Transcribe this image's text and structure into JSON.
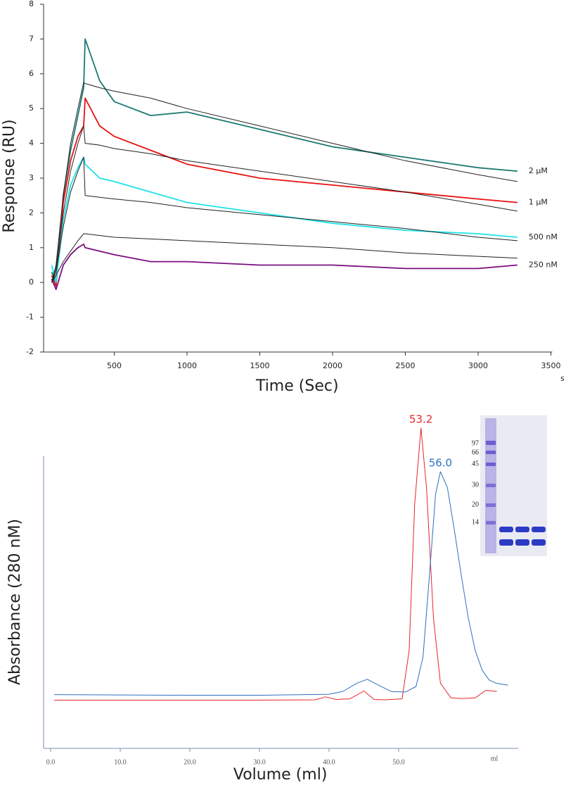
{
  "chart_data": [
    {
      "type": "line",
      "y_label": "Response (RU)",
      "x_label": "Time (Sec)",
      "x_unit": "s",
      "xlim": [
        0,
        3500
      ],
      "xticks": [
        500,
        1000,
        1500,
        2000,
        2500,
        3000,
        3500
      ],
      "ylim": [
        -2,
        8
      ],
      "yticks": [
        -2,
        -1,
        0,
        1,
        2,
        3,
        4,
        5,
        6,
        7,
        8
      ],
      "x": [
        70,
        100,
        150,
        200,
        250,
        290,
        300,
        400,
        500,
        750,
        1000,
        1500,
        2000,
        2500,
        3000,
        3270
      ],
      "series": [
        {
          "name": "2 µM",
          "color": "#1a7a74",
          "values": [
            0.3,
            0,
            2.5,
            3.8,
            4.8,
            5.6,
            7.0,
            5.8,
            5.2,
            4.8,
            4.9,
            4.4,
            3.9,
            3.6,
            3.3,
            3.2
          ]
        },
        {
          "name": "1 µM",
          "color": "#e8110f",
          "values": [
            0.2,
            -0.1,
            2.3,
            3.5,
            4.2,
            4.5,
            5.3,
            4.5,
            4.2,
            3.8,
            3.4,
            3.0,
            2.8,
            2.6,
            2.4,
            2.3
          ]
        },
        {
          "name": "500 nM",
          "color": "#1de3e8",
          "values": [
            0.5,
            0,
            1.8,
            2.8,
            3.3,
            3.6,
            3.4,
            3.0,
            2.9,
            2.6,
            2.3,
            2.0,
            1.7,
            1.5,
            1.4,
            1.3
          ]
        },
        {
          "name": "250 nM",
          "color": "#7a1080",
          "values": [
            0.1,
            -0.2,
            0.5,
            0.8,
            1.0,
            1.1,
            1.0,
            0.9,
            0.8,
            0.6,
            0.6,
            0.5,
            0.5,
            0.4,
            0.4,
            0.5
          ]
        },
        {
          "color": "#222222",
          "values": [
            0,
            0.5,
            2.5,
            4.0,
            5.0,
            5.75,
            5.72,
            5.6,
            5.5,
            5.3,
            5.0,
            4.5,
            4.0,
            3.5,
            3.1,
            2.9
          ]
        },
        {
          "color": "#222222",
          "values": [
            0,
            0.4,
            2.0,
            3.2,
            4.0,
            4.5,
            4.0,
            3.95,
            3.85,
            3.7,
            3.5,
            3.2,
            2.9,
            2.6,
            2.25,
            2.05
          ]
        },
        {
          "color": "#222222",
          "values": [
            0,
            0.3,
            1.6,
            2.6,
            3.2,
            3.6,
            2.5,
            2.45,
            2.4,
            2.3,
            2.15,
            1.95,
            1.75,
            1.55,
            1.3,
            1.2
          ]
        },
        {
          "color": "#222222",
          "values": [
            0,
            0.2,
            0.6,
            0.9,
            1.2,
            1.4,
            1.4,
            1.35,
            1.3,
            1.25,
            1.2,
            1.1,
            1.0,
            0.85,
            0.75,
            0.7
          ]
        }
      ]
    },
    {
      "type": "line",
      "y_label": "Absorbance (280 nM)",
      "x_label": "Volume (ml)",
      "x_unit": "ml",
      "xlim": [
        -1,
        67
      ],
      "xticks": [
        {
          "value": 0,
          "label": "0.0"
        },
        {
          "value": 10,
          "label": "10.0"
        },
        {
          "value": 20,
          "label": "20.0"
        },
        {
          "value": 30,
          "label": "30.0"
        },
        {
          "value": 40,
          "label": "40.0"
        },
        {
          "value": 50,
          "label": "50.0"
        }
      ],
      "ylim": [
        0,
        100
      ],
      "series": [
        {
          "color": "#e8252a",
          "peak_label": "53.2",
          "x": [
            0.5,
            10,
            20,
            30,
            38,
            39.5,
            41,
            43,
            45,
            46.5,
            48,
            50.5,
            51.5,
            52.3,
            53.2,
            54,
            55,
            56,
            57.5,
            59,
            61,
            62.5,
            63.5,
            64.1
          ],
          "values": [
            14.8,
            14.8,
            14.8,
            14.8,
            14.9,
            15.8,
            15.0,
            15.2,
            17.6,
            15.0,
            14.9,
            15.2,
            30,
            75,
            98.3,
            80,
            40,
            20,
            15.5,
            15.3,
            15.5,
            17.8,
            17.6,
            17.5
          ]
        },
        {
          "color": "#2f6fc0",
          "peak_label": "56.0",
          "x": [
            0.5,
            10,
            20,
            30,
            40,
            42,
            44,
            45.5,
            47,
            49,
            51,
            52.5,
            53.5,
            54.5,
            55.3,
            56,
            57,
            58,
            59,
            60,
            61,
            62,
            63,
            64,
            65.7
          ],
          "values": [
            16.5,
            16.4,
            16.3,
            16.3,
            16.6,
            17.5,
            20,
            21.2,
            19.5,
            17.4,
            17.3,
            19,
            28,
            55,
            78,
            84.9,
            80,
            67,
            53,
            40,
            30,
            24,
            21,
            20,
            19.4
          ]
        }
      ],
      "gel_marker_labels": [
        97,
        66,
        45,
        30,
        20,
        14
      ]
    }
  ]
}
